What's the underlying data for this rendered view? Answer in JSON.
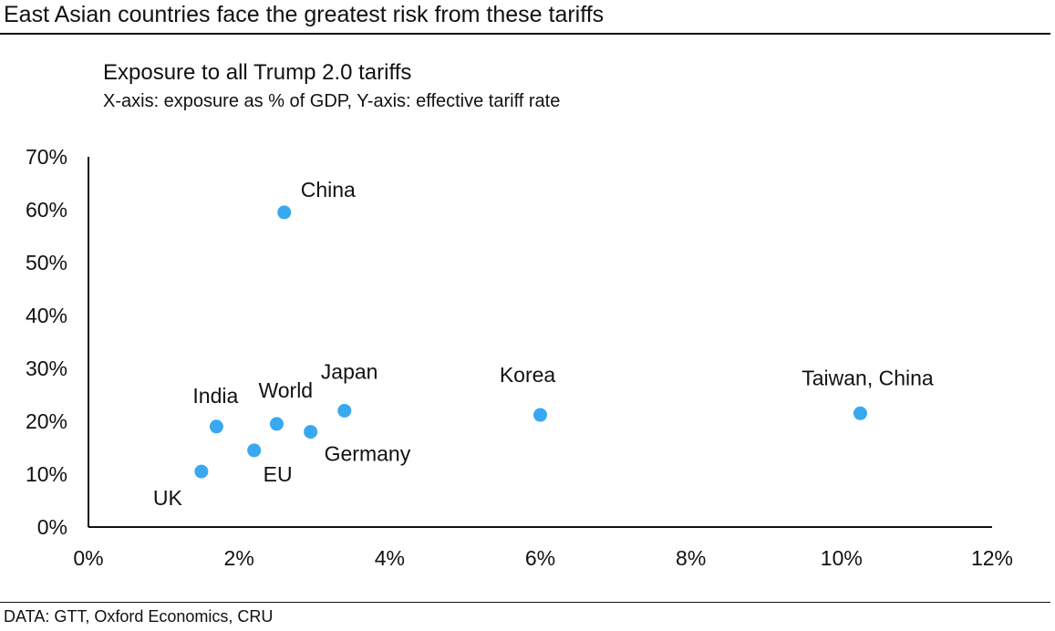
{
  "header": {
    "headline": "East Asian countries face the greatest risk from these tariffs"
  },
  "footer": {
    "source": "DATA: GTT, Oxford Economics, CRU"
  },
  "colors": {
    "point": "#3aa8f0",
    "axis": "#111111"
  },
  "chart_data": {
    "type": "scatter",
    "title": "Exposure to all Trump 2.0 tariffs",
    "subtitle": "X-axis: exposure as % of GDP, Y-axis: effective tariff rate",
    "xlabel": "",
    "ylabel": "",
    "xlim": [
      0,
      12
    ],
    "ylim": [
      0,
      70
    ],
    "x_ticks": [
      0,
      2,
      4,
      6,
      8,
      10,
      12
    ],
    "x_tick_labels": [
      "0%",
      "2%",
      "4%",
      "6%",
      "8%",
      "10%",
      "12%"
    ],
    "y_ticks": [
      0,
      10,
      20,
      30,
      40,
      50,
      60,
      70
    ],
    "y_tick_labels": [
      "0%",
      "10%",
      "20%",
      "30%",
      "40%",
      "50%",
      "60%",
      "70%"
    ],
    "grid": false,
    "legend": "none",
    "points": [
      {
        "label": "China",
        "x": 2.6,
        "y": 59.5
      },
      {
        "label": "Japan",
        "x": 3.4,
        "y": 22.0
      },
      {
        "label": "Korea",
        "x": 6.0,
        "y": 21.2
      },
      {
        "label": "Taiwan, China",
        "x": 10.25,
        "y": 21.5
      },
      {
        "label": "India",
        "x": 1.7,
        "y": 19.0
      },
      {
        "label": "World",
        "x": 2.5,
        "y": 19.5
      },
      {
        "label": "Germany",
        "x": 2.95,
        "y": 18.0
      },
      {
        "label": "EU",
        "x": 2.2,
        "y": 14.5
      },
      {
        "label": "UK",
        "x": 1.5,
        "y": 10.5
      }
    ]
  }
}
